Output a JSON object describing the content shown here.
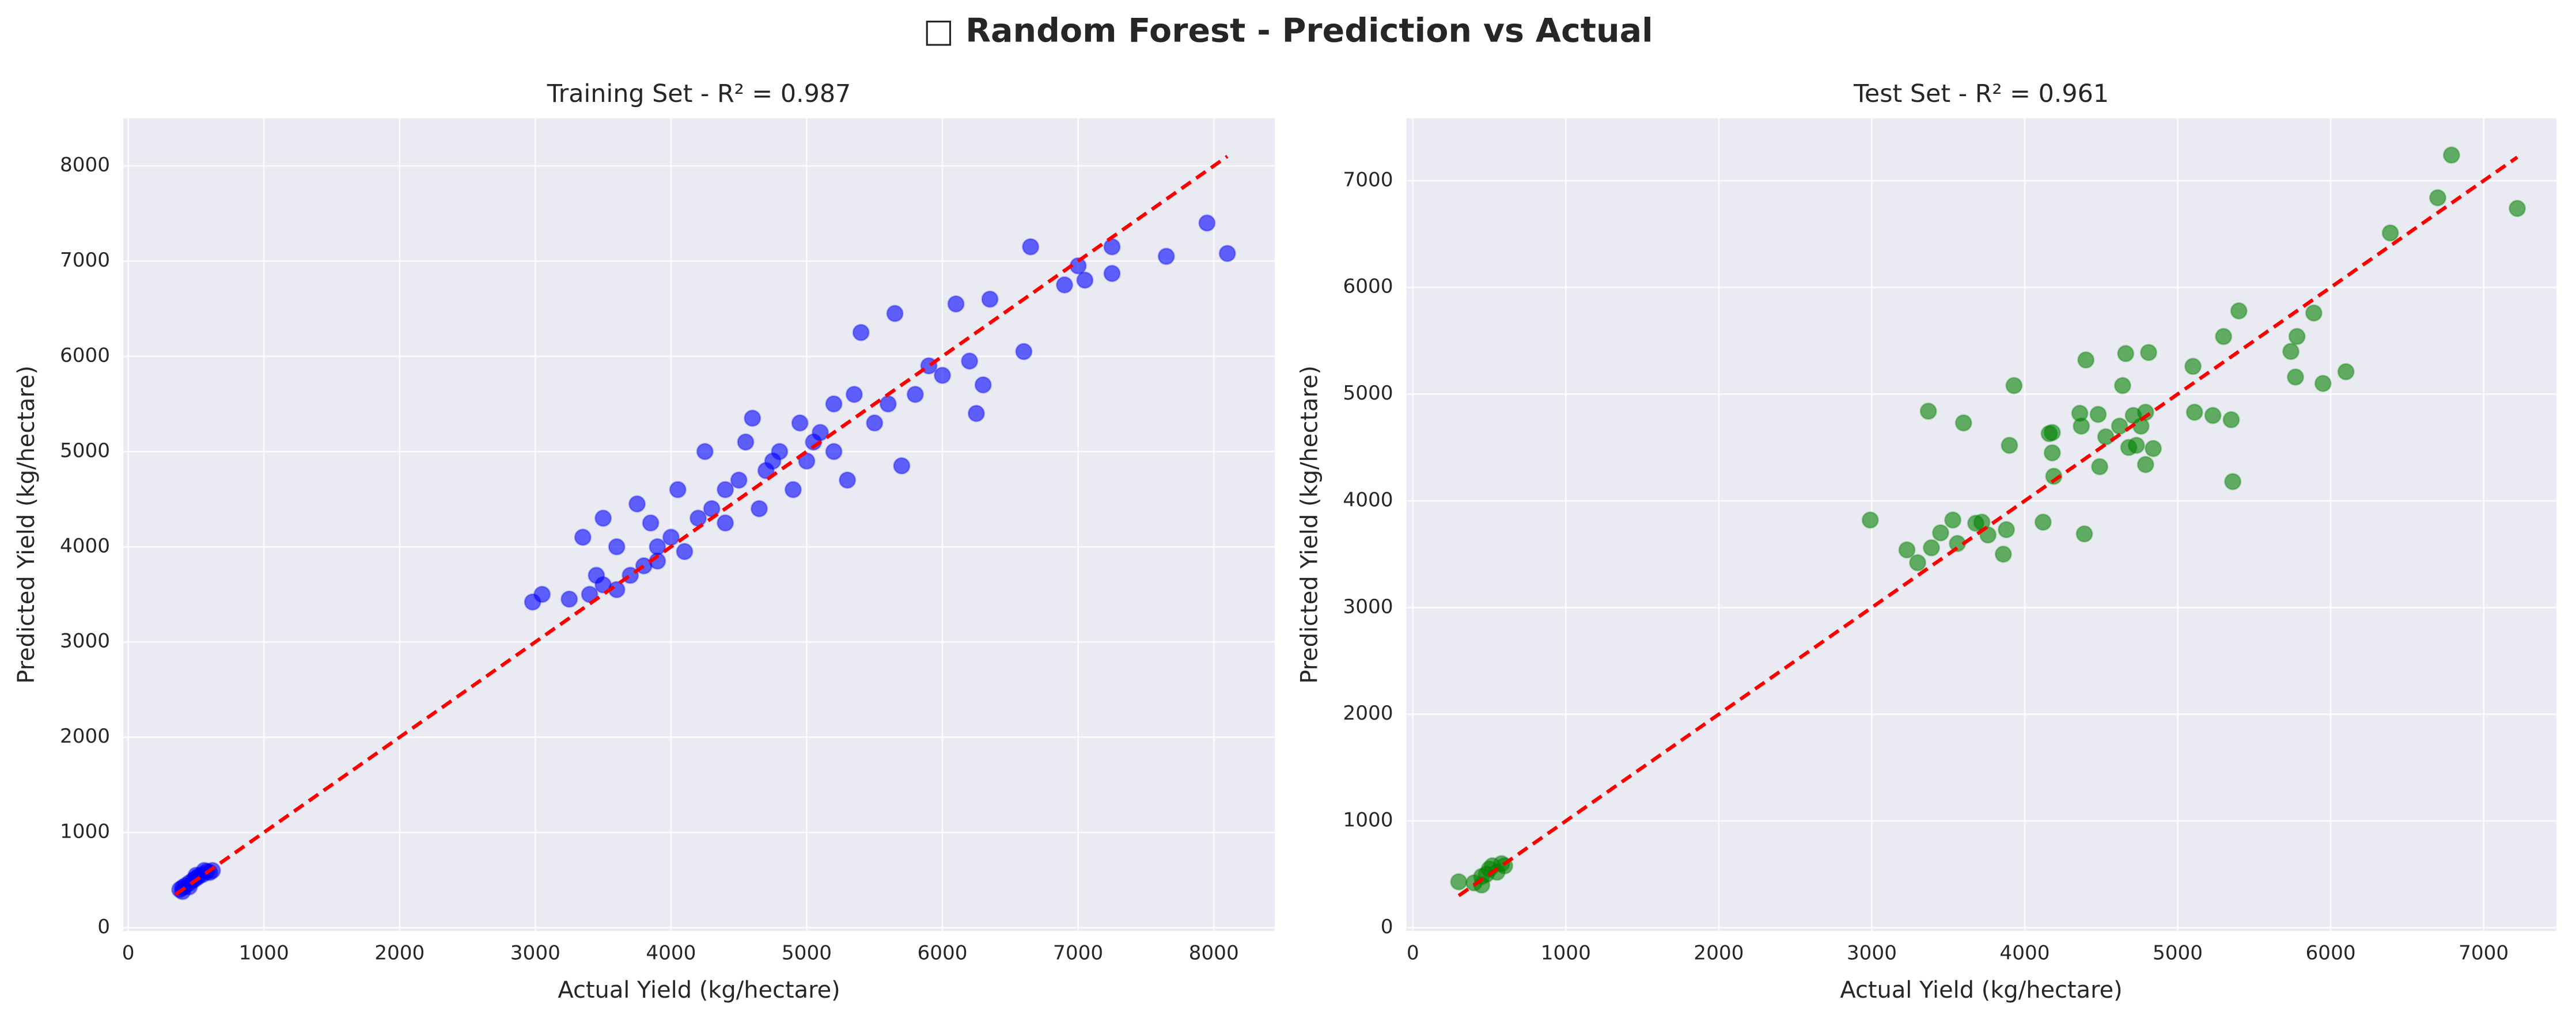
{
  "title": "□ Random Forest - Prediction vs Actual",
  "chart_data": [
    {
      "type": "scatter",
      "title": "Training Set - R² = 0.987",
      "xlabel": "Actual Yield (kg/hectare)",
      "ylabel": "Predicted Yield (kg/hectare)",
      "color": "#0000ff",
      "diagonal_color": "#ff0000",
      "grid": true,
      "xlim": [
        -37,
        8450
      ],
      "ylim": [
        -35,
        8500
      ],
      "xticks": [
        0,
        1000,
        2000,
        3000,
        4000,
        5000,
        6000,
        7000,
        8000
      ],
      "yticks": [
        0,
        1000,
        2000,
        3000,
        4000,
        5000,
        6000,
        7000,
        8000
      ],
      "diagonal": [
        350,
        8100
      ],
      "x": [
        380,
        400,
        420,
        450,
        480,
        500,
        520,
        550,
        580,
        600,
        620,
        450,
        500,
        400,
        560,
        2980,
        3050,
        3250,
        3400,
        3450,
        3500,
        3600,
        3700,
        3750,
        3800,
        3850,
        3900,
        4000,
        4050,
        4100,
        4200,
        4250,
        4300,
        4400,
        4500,
        4550,
        4600,
        4650,
        4700,
        4800,
        4900,
        4950,
        5000,
        5100,
        5200,
        5300,
        5350,
        5400,
        5500,
        5600,
        5650,
        5700,
        5800,
        5900,
        6000,
        6100,
        6200,
        6250,
        6300,
        6350,
        6600,
        6650,
        6900,
        7000,
        7050,
        7250,
        7250,
        7650,
        7950,
        8100,
        3500,
        3350,
        4400,
        5050,
        4750,
        5200,
        3600,
        3900
      ],
      "y": [
        400,
        420,
        440,
        470,
        500,
        520,
        540,
        560,
        590,
        580,
        600,
        430,
        550,
        380,
        600,
        3420,
        3500,
        3450,
        3500,
        3700,
        3600,
        4000,
        3700,
        4450,
        3800,
        4250,
        4000,
        4100,
        4600,
        3950,
        4300,
        5000,
        4400,
        4600,
        4700,
        5100,
        5350,
        4400,
        4800,
        5000,
        4600,
        5300,
        4900,
        5200,
        5000,
        4700,
        5600,
        6250,
        5300,
        5500,
        6450,
        4850,
        5600,
        5900,
        5800,
        6550,
        5950,
        5400,
        5700,
        6600,
        6050,
        7150,
        6750,
        6950,
        6800,
        7150,
        6870,
        7050,
        7400,
        7080,
        4300,
        4100,
        4250,
        5100,
        4900,
        5500,
        3550,
        3850
      ]
    },
    {
      "type": "scatter",
      "title": "Test Set - R² = 0.961",
      "xlabel": "Actual Yield (kg/hectare)",
      "ylabel": "Predicted Yield (kg/hectare)",
      "color": "#008000",
      "diagonal_color": "#ff0000",
      "grid": true,
      "xlim": [
        -43,
        7475
      ],
      "ylim": [
        -31,
        7585
      ],
      "xticks": [
        0,
        1000,
        2000,
        3000,
        4000,
        5000,
        6000,
        7000
      ],
      "yticks": [
        0,
        1000,
        2000,
        3000,
        4000,
        5000,
        6000,
        7000
      ],
      "diagonal": [
        300,
        7220
      ],
      "x": [
        300,
        400,
        450,
        480,
        500,
        520,
        550,
        600,
        450,
        580,
        2990,
        3230,
        3300,
        3370,
        3390,
        3450,
        3530,
        3560,
        3600,
        3680,
        3720,
        3760,
        3860,
        3880,
        3900,
        3930,
        4120,
        4160,
        4180,
        4180,
        4190,
        4360,
        4370,
        4390,
        4400,
        4480,
        4490,
        4530,
        4620,
        4640,
        4660,
        4680,
        4710,
        4730,
        4760,
        4790,
        4790,
        4810,
        4840,
        5100,
        5110,
        5230,
        5300,
        5350,
        5360,
        5400,
        5740,
        5770,
        5780,
        5890,
        5950,
        6100,
        6390,
        6700,
        6790,
        7220
      ],
      "y": [
        430,
        420,
        480,
        500,
        550,
        580,
        520,
        580,
        400,
        600,
        3820,
        3540,
        3420,
        4840,
        3560,
        3700,
        3820,
        3600,
        4730,
        3790,
        3800,
        3680,
        3500,
        3730,
        4520,
        5080,
        3800,
        4630,
        4640,
        4450,
        4230,
        4820,
        4700,
        3690,
        5320,
        4810,
        4320,
        4600,
        4700,
        5080,
        5380,
        4500,
        4800,
        4520,
        4700,
        4340,
        4830,
        5390,
        4490,
        5260,
        4830,
        4800,
        5540,
        4760,
        4180,
        5780,
        5400,
        5160,
        5540,
        5760,
        5100,
        5210,
        6510,
        6840,
        7240,
        6740
      ]
    }
  ]
}
